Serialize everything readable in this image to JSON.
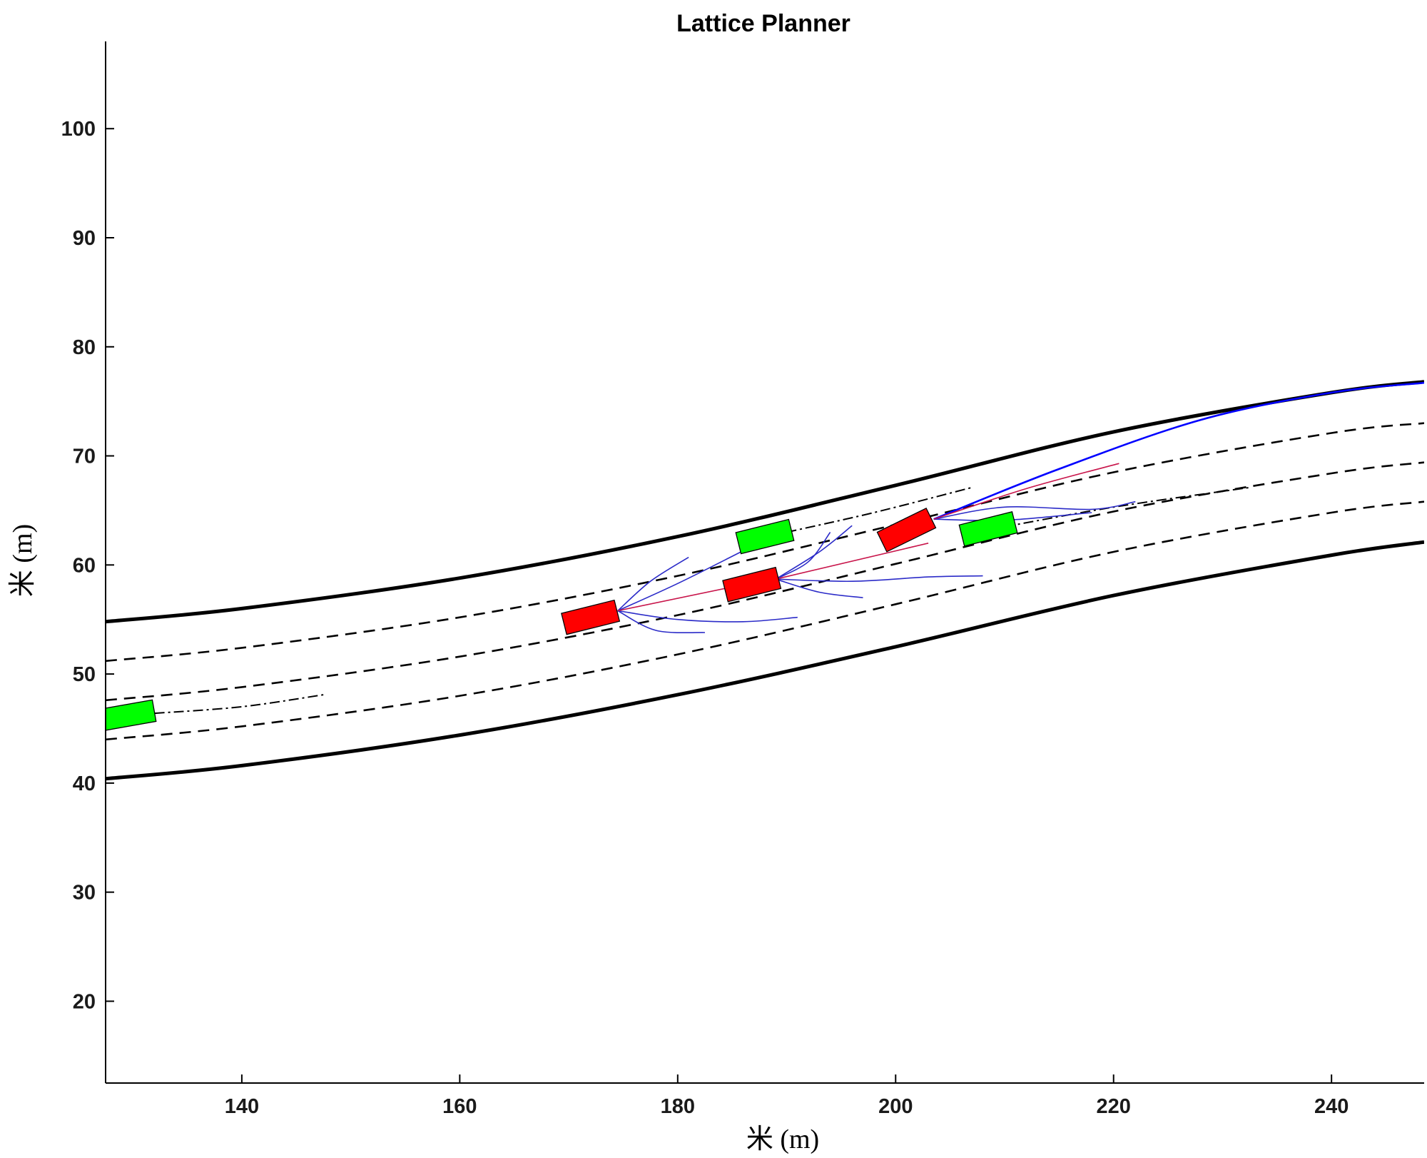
{
  "chart_data": {
    "type": "line",
    "title": "Lattice Planner",
    "xlabel": "米 (m)",
    "ylabel": "米 (m)",
    "xlim": [
      127.5,
      248.5
    ],
    "ylim": [
      12.5,
      108
    ],
    "xticks": [
      140,
      160,
      180,
      200,
      220,
      240
    ],
    "yticks": [
      20,
      30,
      40,
      50,
      60,
      70,
      80,
      90,
      100
    ],
    "grid": false,
    "road_boundaries": [
      {
        "name": "left boundary",
        "style": "solid",
        "color": "#000000",
        "points": [
          [
            127.5,
            54.8
          ],
          [
            140,
            56.0
          ],
          [
            160,
            58.8
          ],
          [
            180,
            62.6
          ],
          [
            200,
            67.3
          ],
          [
            220,
            72.2
          ],
          [
            240,
            75.8
          ],
          [
            248.5,
            76.8
          ]
        ]
      },
      {
        "name": "right boundary",
        "style": "solid",
        "color": "#000000",
        "points": [
          [
            127.5,
            40.4
          ],
          [
            140,
            41.6
          ],
          [
            160,
            44.4
          ],
          [
            180,
            48.1
          ],
          [
            200,
            52.5
          ],
          [
            220,
            57.2
          ],
          [
            240,
            60.9
          ],
          [
            248.5,
            62.1
          ]
        ]
      }
    ],
    "lane_lines": [
      {
        "style": "dashed",
        "points": [
          [
            127.5,
            51.2
          ],
          [
            140,
            52.4
          ],
          [
            160,
            55.2
          ],
          [
            180,
            59.0
          ],
          [
            200,
            63.7
          ],
          [
            220,
            68.5
          ],
          [
            240,
            72.1
          ],
          [
            248.5,
            73.0
          ]
        ]
      },
      {
        "style": "dashed",
        "points": [
          [
            127.5,
            47.6
          ],
          [
            140,
            48.8
          ],
          [
            160,
            51.6
          ],
          [
            180,
            55.4
          ],
          [
            200,
            60.1
          ],
          [
            220,
            64.9
          ],
          [
            240,
            68.4
          ],
          [
            248.5,
            69.4
          ]
        ]
      },
      {
        "style": "dashed",
        "points": [
          [
            127.5,
            44.0
          ],
          [
            140,
            45.2
          ],
          [
            160,
            48.0
          ],
          [
            180,
            51.8
          ],
          [
            200,
            56.4
          ],
          [
            220,
            61.2
          ],
          [
            240,
            64.8
          ],
          [
            248.5,
            65.8
          ]
        ]
      }
    ],
    "predicted_paths": [
      {
        "style": "dashdot",
        "points": [
          [
            132,
            46.4
          ],
          [
            140,
            47.0
          ],
          [
            147.5,
            48.1
          ]
        ]
      },
      {
        "style": "dashdot",
        "points": [
          [
            190,
            63.0
          ],
          [
            198,
            64.8
          ],
          [
            207,
            67.1
          ]
        ]
      },
      {
        "style": "dashdot",
        "points": [
          [
            210,
            63.5
          ],
          [
            220,
            65.3
          ],
          [
            232.5,
            67.1
          ]
        ]
      }
    ],
    "ego_vehicles": [
      {
        "x": 172.0,
        "y": 55.2,
        "heading_deg": 14,
        "length": 5.0,
        "width": 2.0,
        "color": "#ff0000"
      },
      {
        "x": 186.8,
        "y": 58.2,
        "heading_deg": 14,
        "length": 5.0,
        "width": 2.0,
        "color": "#ff0000"
      },
      {
        "x": 201.0,
        "y": 63.2,
        "heading_deg": 26,
        "length": 5.0,
        "width": 2.0,
        "color": "#ff0000"
      }
    ],
    "obstacle_vehicles": [
      {
        "x": 129.5,
        "y": 46.2,
        "heading_deg": 10,
        "length": 5.0,
        "width": 2.0,
        "color": "#00ff00"
      },
      {
        "x": 188.0,
        "y": 62.6,
        "heading_deg": 14,
        "length": 5.0,
        "width": 2.0,
        "color": "#00ff00"
      },
      {
        "x": 208.5,
        "y": 63.3,
        "heading_deg": 14,
        "length": 5.0,
        "width": 2.0,
        "color": "#00ff00"
      }
    ],
    "candidate_trajectories": [
      {
        "points": [
          [
            174.5,
            55.8
          ],
          [
            177.5,
            58.5
          ],
          [
            181,
            60.7
          ]
        ]
      },
      {
        "points": [
          [
            174.5,
            55.8
          ],
          [
            180,
            58.3
          ],
          [
            186,
            61.3
          ]
        ]
      },
      {
        "points": [
          [
            174.5,
            55.8
          ],
          [
            180,
            55.0
          ],
          [
            186,
            54.8
          ],
          [
            191,
            55.2
          ]
        ]
      },
      {
        "points": [
          [
            174.5,
            55.8
          ],
          [
            178,
            54.0
          ],
          [
            182.5,
            53.8
          ]
        ]
      },
      {
        "points": [
          [
            189,
            58.7
          ],
          [
            193,
            61.2
          ],
          [
            196,
            63.6
          ]
        ]
      },
      {
        "points": [
          [
            189,
            58.7
          ],
          [
            196,
            58.5
          ],
          [
            203,
            58.9
          ],
          [
            208,
            59.0
          ]
        ]
      },
      {
        "points": [
          [
            189,
            58.7
          ],
          [
            193,
            57.5
          ],
          [
            197,
            57.0
          ]
        ]
      },
      {
        "points": [
          [
            189,
            58.7
          ],
          [
            192,
            60.3
          ],
          [
            194,
            63.0
          ]
        ]
      },
      {
        "points": [
          [
            203.5,
            64.2
          ],
          [
            210,
            65.3
          ],
          [
            218,
            65.1
          ],
          [
            222,
            65.8
          ]
        ]
      },
      {
        "points": [
          [
            203.5,
            64.2
          ],
          [
            210,
            64.1
          ],
          [
            218,
            64.8
          ]
        ]
      },
      {
        "points": [
          [
            203.5,
            64.2
          ],
          [
            215,
            68.8
          ],
          [
            228,
            73.3
          ],
          [
            240,
            75.8
          ],
          [
            248.5,
            76.7
          ]
        ]
      }
    ],
    "selected_trajectories": [
      {
        "points": [
          [
            174.5,
            55.8
          ],
          [
            188,
            58.6
          ]
        ]
      },
      {
        "points": [
          [
            189,
            58.7
          ],
          [
            203,
            62.0
          ]
        ]
      },
      {
        "points": [
          [
            203.5,
            64.2
          ],
          [
            212,
            67.0
          ],
          [
            220.5,
            69.3
          ]
        ]
      }
    ],
    "colors": {
      "ego": "#ff0000",
      "obstacle": "#00ff00",
      "candidate": "#2b2bc8",
      "selected": "#c8144a",
      "final": "#0000ff"
    }
  }
}
